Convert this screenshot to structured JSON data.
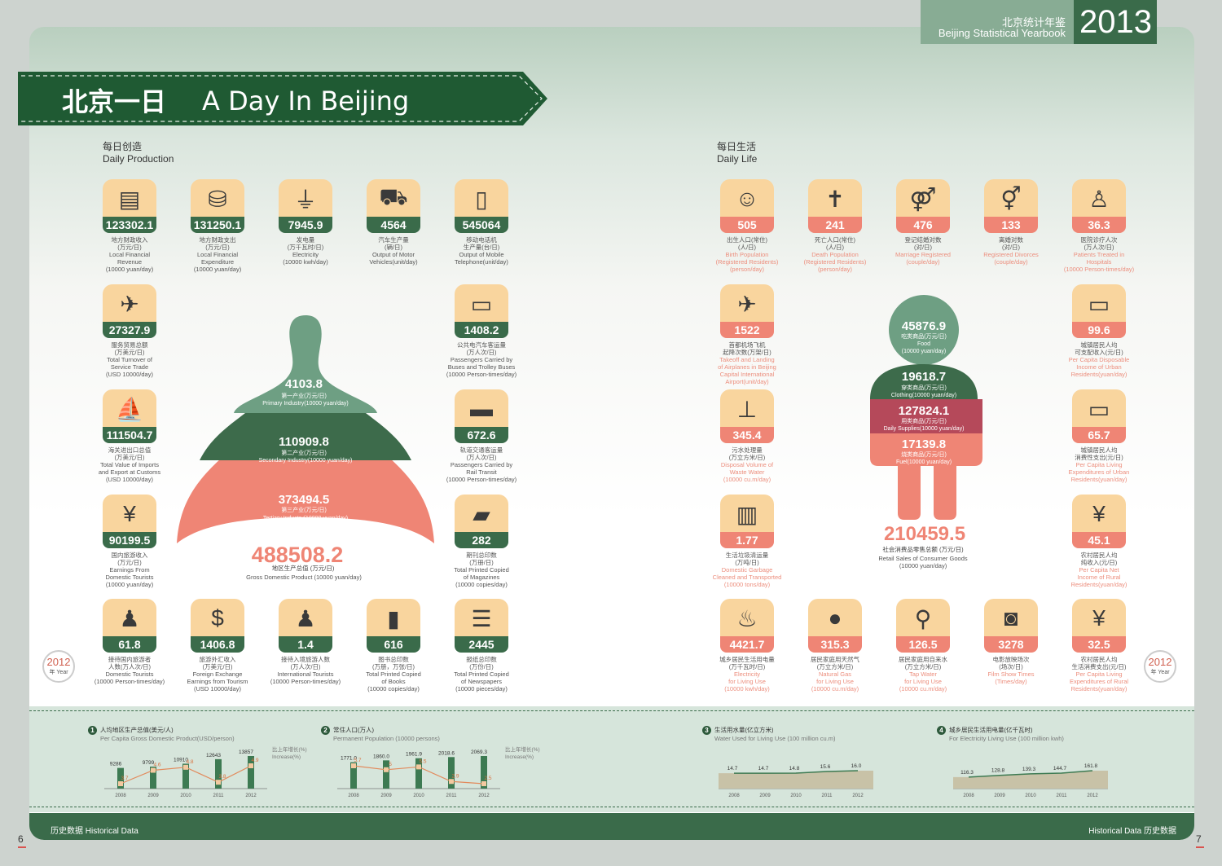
{
  "header": {
    "cn": "北京统计年鉴",
    "en": "Beijing Statistical Yearbook",
    "year": "2013"
  },
  "banner": {
    "cn": "北京一日",
    "en": "A Day In Beijing"
  },
  "production_title": {
    "cn": "每日创造",
    "en": "Daily Production"
  },
  "life_title": {
    "cn": "每日生活",
    "en": "Daily Life"
  },
  "production_tiles": [
    {
      "icon": "money-stack-icon",
      "glyph": "▤",
      "value": "123302.1",
      "cn": "地方财政收入\n(万元/日)",
      "en": "Local Financial\nRevenue\n(10000 yuan/day)"
    },
    {
      "icon": "coins-icon",
      "glyph": "⛁",
      "value": "131250.1",
      "cn": "地方财政支出\n(万元/日)",
      "en": "Local Financial\nExpenditure\n(10000 yuan/day)"
    },
    {
      "icon": "plug-icon",
      "glyph": "⏚",
      "value": "7945.9",
      "cn": "发电量\n(万千瓦时/日)",
      "en": "Electricity\n(10000 kwh/day)"
    },
    {
      "icon": "car-icon",
      "glyph": "⛟",
      "value": "4564",
      "cn": "汽车生产量\n(辆/日)",
      "en": "Output of Motor\nVehicles(unit/day)"
    },
    {
      "icon": "mobile-phone-icon",
      "glyph": "▯",
      "value": "545064",
      "cn": "移动电话机\n生产量(台/日)",
      "en": "Output of Mobile\nTelephone(unit/day)"
    },
    {
      "icon": "airplane-icon",
      "glyph": "✈",
      "value": "27327.9",
      "cn": "服务贸易总额\n(万美元/日)",
      "en": "Total Turnover of\nService Trade\n(USD 10000/day)"
    },
    {
      "icon": "bus-icon",
      "glyph": "▭",
      "value": "1408.2",
      "cn": "公共电汽车客运量\n(万人次/日)",
      "en": "Passengers Carried by\nBuses and Trolley Buses\n(10000 Person-times/day)"
    },
    {
      "icon": "ship-icon",
      "glyph": "⛵",
      "value": "111504.7",
      "cn": "海关进出口总值\n(万美元/日)",
      "en": "Total Value of Imports\nand Export at Customs\n(USD 10000/day)"
    },
    {
      "icon": "train-icon",
      "glyph": "▬",
      "value": "672.6",
      "cn": "轨道交通客运量\n(万人次/日)",
      "en": "Passengers Carried by\nRail Transit\n(10000 Person-times/day)"
    },
    {
      "icon": "money-bag-icon",
      "glyph": "¥",
      "value": "90199.5",
      "cn": "国内旅游收入\n(万元/日)",
      "en": "Earnings From\nDomestic Tourists\n(10000 yuan/day)"
    },
    {
      "icon": "magazine-icon",
      "glyph": "▰",
      "value": "282",
      "cn": "期刊总印数\n(万册/日)",
      "en": "Total Printed Copied\nof Magazines\n(10000 copies/day)"
    },
    {
      "icon": "tourist-icon",
      "glyph": "♟",
      "value": "61.8",
      "cn": "接待国内旅游者\n人数(万人次/日)",
      "en": "Domestic Tourists\n(10000 Person-times/day)"
    },
    {
      "icon": "dollar-icon",
      "glyph": "$",
      "value": "1406.8",
      "cn": "旅游外汇收入\n(万美元/日)",
      "en": "Foreign Exchange\nEarnings from Tourism\n(USD 10000/day)"
    },
    {
      "icon": "international-tourist-icon",
      "glyph": "♟",
      "value": "1.4",
      "cn": "接待入境旅游人数\n(万人次/日)",
      "en": "International Tourists\n(10000 Person-times/day)"
    },
    {
      "icon": "book-icon",
      "glyph": "▮",
      "value": "616",
      "cn": "图书总印数\n(万册，万张/日)",
      "en": "Total Printed Copied\nof Books\n(10000 copies/day)"
    },
    {
      "icon": "newspaper-icon",
      "glyph": "☰",
      "value": "2445",
      "cn": "报纸总印数\n(万份/日)",
      "en": "Total Printed Copied\nof Newspapers\n(10000 pieces/day)"
    }
  ],
  "life_tiles": [
    {
      "icon": "baby-icon",
      "glyph": "☺",
      "value": "505",
      "cn": "出生人口(常住)\n(人/日)",
      "en": "Birth Population\n(Registered Residents)\n(person/day)"
    },
    {
      "icon": "cross-icon",
      "glyph": "✝",
      "value": "241",
      "cn": "死亡人口(常住)\n(人/日)",
      "en": "Death Population\n(Registered Residents)\n(person/day)"
    },
    {
      "icon": "couple-icon",
      "glyph": "⚤",
      "value": "476",
      "cn": "登记结婚对数\n(对/日)",
      "en": "Marriage Registered\n(couple/day)"
    },
    {
      "icon": "divorce-icon",
      "glyph": "⚥",
      "value": "133",
      "cn": "离婚对数\n(对/日)",
      "en": "Registered Divorces\n(couple/day)"
    },
    {
      "icon": "nurse-icon",
      "glyph": "♙",
      "value": "36.3",
      "cn": "医院诊疗人次\n(万人次/日)",
      "en": "Patients Treated in\nHospitals\n(10000 Person-times/day)"
    },
    {
      "icon": "airplane-icon",
      "glyph": "✈",
      "value": "1522",
      "cn": "首都机场飞机\n起降次数(万架/日)",
      "en": "Takeoff and Landing\nof Airplanes in Beijing\nCapital International\nAirport(unit/day)"
    },
    {
      "icon": "card-in-icon",
      "glyph": "▭",
      "value": "99.6",
      "cn": "城镇居民人均\n可支配收入(元/日)",
      "en": "Per Capita Disposable\nIncome of Urban\nResidents(yuan/day)"
    },
    {
      "icon": "pipe-icon",
      "glyph": "⊥",
      "value": "345.4",
      "cn": "污水处理量\n(万立方米/日)",
      "en": "Disposal Volume of\nWaste Water\n(10000 cu.m/day)"
    },
    {
      "icon": "card-out-icon",
      "glyph": "▭",
      "value": "65.7",
      "cn": "城镇居民人均\n消费性支出(元/日)",
      "en": "Per Capita Living\nExpenditures of Urban\nResidents(yuan/day)"
    },
    {
      "icon": "trash-icon",
      "glyph": "▥",
      "value": "1.77",
      "cn": "生活垃圾清运量\n(万吨/日)",
      "en": "Domestic Garbage\nCleaned and Transported\n(10000 tons/day)"
    },
    {
      "icon": "money-bag-in-icon",
      "glyph": "¥",
      "value": "45.1",
      "cn": "农村居民人均\n纯收入(元/日)",
      "en": "Per Capita Net\nIncome of Rural\nResidents(yuan/day)"
    },
    {
      "icon": "lamp-icon",
      "glyph": "♨",
      "value": "4421.7",
      "cn": "城乡居民生活用电量\n(万千瓦时/日)",
      "en": "Electricity\nfor Living Use\n(10000 kwh/day)"
    },
    {
      "icon": "gas-bomb-icon",
      "glyph": "●",
      "value": "315.3",
      "cn": "居民家庭用天然气\n(万立方米/日)",
      "en": "Natural Gas\nfor Living Use\n(10000 cu.m/day)"
    },
    {
      "icon": "tap-icon",
      "glyph": "⚲",
      "value": "126.5",
      "cn": "居民家庭用自来水\n(万立方米/日)",
      "en": "Tap Water\nfor Living Use\n(10000 cu.m/day)"
    },
    {
      "icon": "film-camera-icon",
      "glyph": "◙",
      "value": "3278",
      "cn": "电影放映场次\n(场次/日)",
      "en": "Film Show Times\n(Times/day)"
    },
    {
      "icon": "money-bag-out-icon",
      "glyph": "¥",
      "value": "32.5",
      "cn": "农村居民人均\n生活消费支出(元/日)",
      "en": "Per Capita Living\nExpenditures of Rural\nResidents(yuan/day)"
    }
  ],
  "gdp_shape": {
    "primary": {
      "value": "4103.8",
      "cn": "第一产业(万元/日)",
      "en": "Primary Industry(10000 yuan/day)"
    },
    "secondary": {
      "value": "110909.8",
      "cn": "第二产业(万元/日)",
      "en": "Secondary Industry(10000 yuan/day)"
    },
    "tertiary": {
      "value": "373494.5",
      "cn": "第三产业(万元/日)",
      "en": "Tertiary Industry(10000 yuan/day)"
    },
    "total": {
      "value": "488508.2",
      "cn": "地区生产总值 (万元/日)",
      "en": "Gross Domestic Product (10000 yuan/day)"
    }
  },
  "consumer_shape": {
    "food": {
      "value": "45876.9",
      "cn": "吃类商品(万元/日)",
      "en": "Food\n(10000 yuan/day)"
    },
    "clothing": {
      "value": "19618.7",
      "cn": "穿类商品(万元/日)",
      "en": "Clothing(10000 yuan/day)"
    },
    "daily": {
      "value": "127824.1",
      "cn": "用类商品(万元/日)",
      "en": "Daily Supplies(10000 yuan/day)"
    },
    "fuel": {
      "value": "17139.8",
      "cn": "烧类商品(万元/日)",
      "en": "Fuel(10000 yuan/day)"
    },
    "total": {
      "value": "210459.5",
      "cn": "社会消费品零售总额 (万元/日)",
      "en": "Retail Sales of Consumer Goods\n(10000 yuan/day)"
    }
  },
  "year_badge": {
    "year": "2012",
    "label": "年 Year"
  },
  "footer": {
    "left": "历史数据   Historical Data",
    "right": "Historical Data   历史数据",
    "page_left": "6",
    "page_right": "7"
  },
  "colors": {
    "green": "#3a6b4a",
    "light_green": "#6e9f83",
    "pink": "#ef8575",
    "tile": "#f9d59e"
  },
  "chart_data": [
    {
      "type": "bar",
      "number": "1",
      "title": "人均地区生产总值(美元/人)",
      "title_en": "Per Capita Gross Domestic Product(USD/person)",
      "categories": [
        "2008",
        "2009",
        "2010",
        "2011",
        "2012"
      ],
      "series": [
        {
          "name": "",
          "values": [
            9286,
            9799,
            10910,
            12643,
            13857
          ]
        },
        {
          "name": "比上年增长(%) Increase(%)",
          "type": "line",
          "values": [
            3.7,
            4.6,
            4.8,
            3.8,
            4.9
          ]
        }
      ],
      "legend": "比上年增长(%)\nIncrease(%)"
    },
    {
      "type": "bar",
      "number": "2",
      "title": "常住人口(万人)",
      "title_en": "Permanent Population (10000 persons)",
      "categories": [
        "2008",
        "2009",
        "2010",
        "2011",
        "2012"
      ],
      "series": [
        {
          "name": "",
          "values": [
            1771.0,
            1860.0,
            1961.9,
            2018.6,
            2069.3
          ]
        },
        {
          "name": "比上年增长(%) Increase(%)",
          "type": "line",
          "values": [
            5.7,
            5.0,
            5.5,
            2.9,
            2.5
          ]
        }
      ],
      "legend": "比上年增长(%)\nIncrease(%)"
    },
    {
      "type": "area",
      "number": "3",
      "title": "生活用水量(亿立方米)",
      "title_en": "Water Used for Living Use (100 million cu.m)",
      "categories": [
        "2008",
        "2009",
        "2010",
        "2011",
        "2012"
      ],
      "series": [
        {
          "name": "",
          "values": [
            14.7,
            14.7,
            14.8,
            15.6,
            16.0
          ]
        }
      ],
      "labels": [
        "14.7",
        "14.7",
        "14.8",
        "15.6",
        "16.0"
      ]
    },
    {
      "type": "area",
      "number": "4",
      "title": "城乡居民生活用电量(亿千瓦时)",
      "title_en": "For Electricity Living Use (100 million kwh)",
      "categories": [
        "2008",
        "2009",
        "2010",
        "2011",
        "2012"
      ],
      "series": [
        {
          "name": "",
          "values": [
            116.3,
            128.8,
            139.3,
            144.7,
            161.8
          ]
        }
      ],
      "labels": [
        "116.3",
        "128.8",
        "139.3",
        "144.7",
        "161.8"
      ]
    }
  ]
}
